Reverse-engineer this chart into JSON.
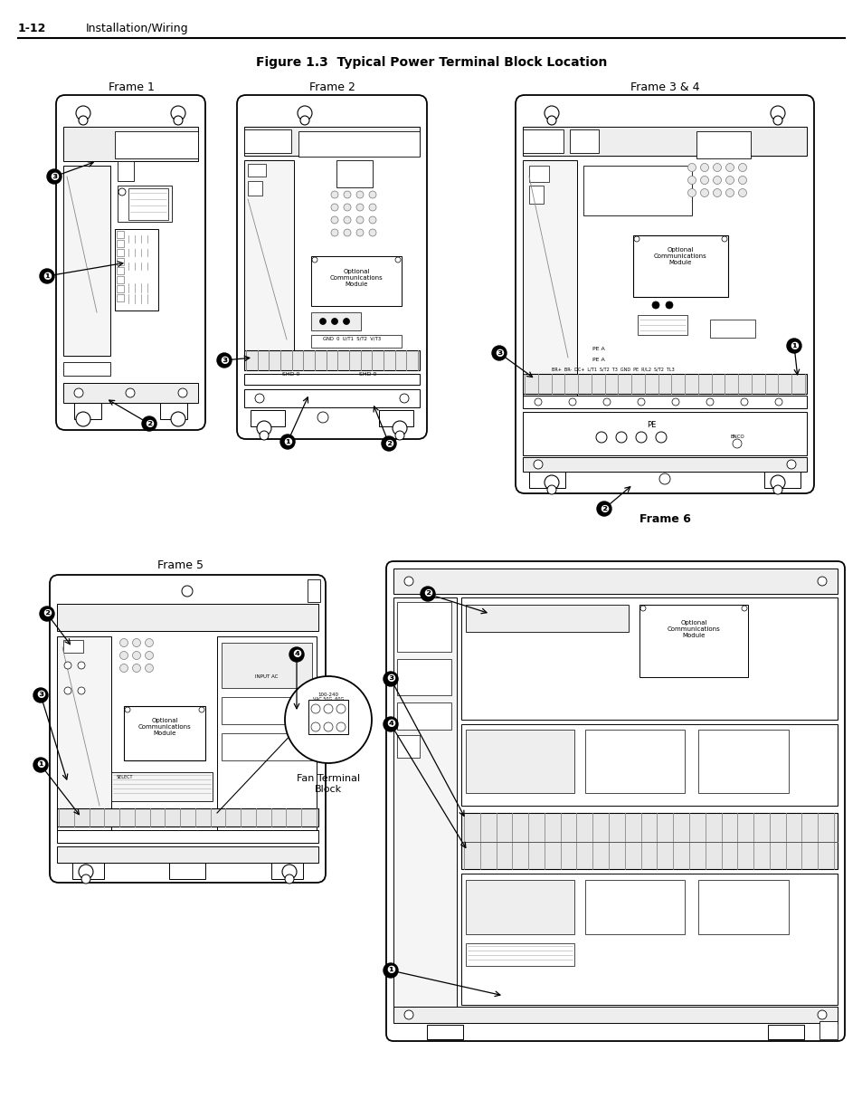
{
  "page_header_number": "1-12",
  "page_header_text": "Installation/Wiring",
  "figure_title": "Figure 1.3  Typical Power Terminal Block Location",
  "frame1_label": "Frame 1",
  "frame2_label": "Frame 2",
  "frame34_label": "Frame 3 & 4",
  "frame5_label": "Frame 5",
  "frame6_label": "Frame 6",
  "fan_terminal_label": "Fan Terminal\nBlock",
  "bg_color": "#ffffff",
  "line_color": "#000000",
  "text_color": "#000000",
  "figure_width": 9.54,
  "figure_height": 12.35,
  "callout_symbols": [
    "①",
    "②",
    "③",
    "④"
  ],
  "callout_filled": true
}
